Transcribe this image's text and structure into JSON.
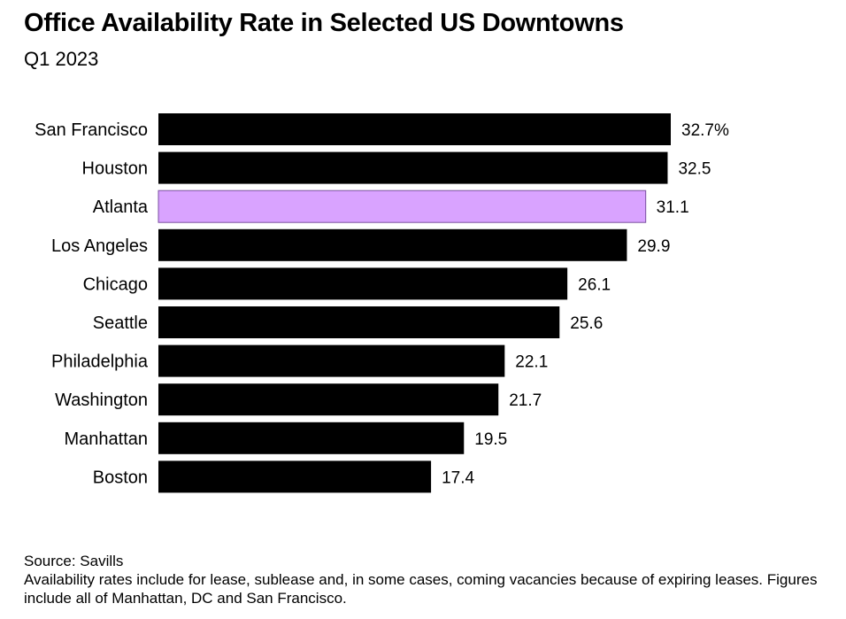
{
  "title": "Office Availability Rate in Selected US Downtowns",
  "subtitle": "Q1 2023",
  "footer": {
    "source": "Source: Savills",
    "note": "Availability rates include for lease, sublease and, in some cases, coming vacancies because of expiring leases. Figures include all of Manhattan, DC and San Francisco."
  },
  "colors": {
    "bar": "#000000",
    "highlight": "#d9a3ff",
    "highlight_border": "#7a4fa0"
  },
  "chart_data": {
    "type": "bar",
    "orientation": "horizontal",
    "title": "Office Availability Rate in Selected US Downtowns",
    "subtitle": "Q1 2023",
    "categories": [
      "San Francisco",
      "Houston",
      "Atlanta",
      "Los Angeles",
      "Chicago",
      "Seattle",
      "Philadelphia",
      "Washington",
      "Manhattan",
      "Boston"
    ],
    "values": [
      32.7,
      32.5,
      31.1,
      29.9,
      26.1,
      25.6,
      22.1,
      21.7,
      19.5,
      17.4
    ],
    "value_labels": [
      "32.7%",
      "32.5",
      "31.1",
      "29.9",
      "26.1",
      "25.6",
      "22.1",
      "21.7",
      "19.5",
      "17.4"
    ],
    "highlight_category": "Atlanta",
    "xlim": [
      0,
      32.7
    ],
    "xlabel": "",
    "ylabel": "",
    "grid": false,
    "legend": "none"
  }
}
